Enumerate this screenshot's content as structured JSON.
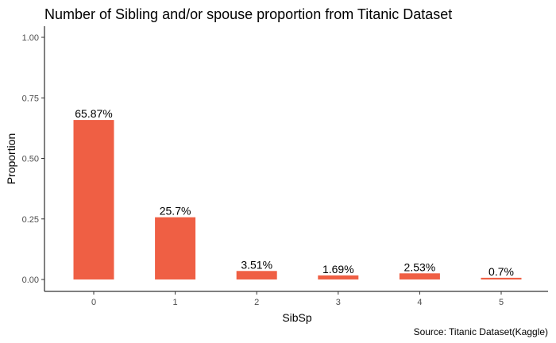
{
  "chart_data": {
    "type": "bar",
    "title": "Number of Sibling and/or spouse proportion from Titanic Dataset",
    "xlabel": "SibSp",
    "ylabel": "Proportion",
    "caption": "Source: Titanic Dataset(Kaggle)",
    "categories": [
      "0",
      "1",
      "2",
      "3",
      "4",
      "5"
    ],
    "values": [
      0.6587,
      0.257,
      0.0351,
      0.0169,
      0.0253,
      0.007
    ],
    "data_labels": [
      "65.87%",
      "25.7%",
      "3.51%",
      "1.69%",
      "2.53%",
      "0.7%"
    ],
    "yticks": [
      "0.00",
      "0.25",
      "0.50",
      "0.75",
      "1.00"
    ],
    "ylim": [
      0,
      1
    ],
    "bar_color": "#EF5F44",
    "grid": false,
    "legend": "none"
  }
}
